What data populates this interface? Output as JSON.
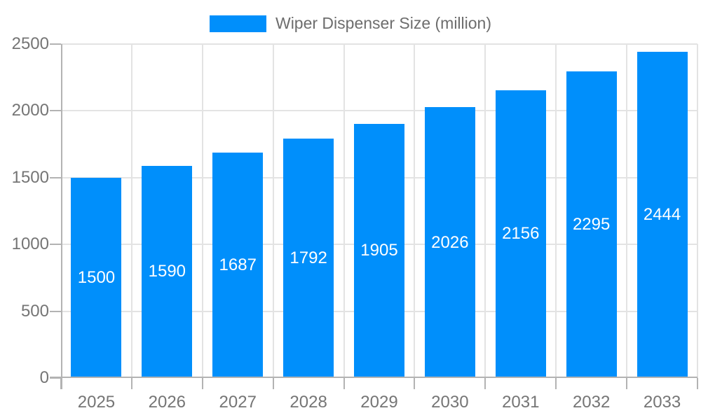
{
  "legend": {
    "items": [
      {
        "label": "Wiper Dispenser Size (million)",
        "color": "#008FFB"
      }
    ]
  },
  "chart_data": {
    "type": "bar",
    "title": "Wiper Dispenser Size (million)",
    "categories": [
      "2025",
      "2026",
      "2027",
      "2028",
      "2029",
      "2030",
      "2031",
      "2032",
      "2033"
    ],
    "series": [
      {
        "name": "Wiper Dispenser Size (million)",
        "values": [
          1500,
          1590,
          1687,
          1792,
          1905,
          2026,
          2156,
          2295,
          2444
        ]
      }
    ],
    "xlabel": "",
    "ylabel": "",
    "ylim": [
      0,
      2500
    ],
    "yticks": [
      0,
      500,
      1000,
      1500,
      2000,
      2500
    ],
    "grid": true,
    "legend_position": "top",
    "value_labels": "inside-center",
    "colors": {
      "bar": "#008FFB",
      "grid": "#e3e3e3",
      "axis": "#b3b3b3",
      "tick_label": "#757575",
      "value_label": "#ffffff",
      "legend_text": "#6d6d6d"
    }
  }
}
